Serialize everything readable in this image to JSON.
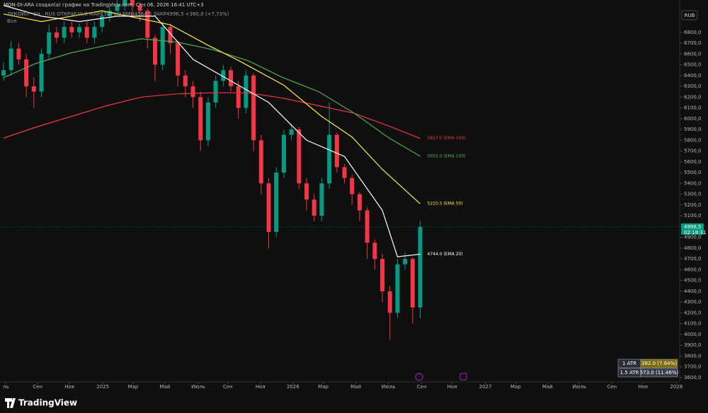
{
  "header": {
    "credit": "MON-DI-ARA создал(а) график на TradingView.com, Сен 06, 2026 16:41 UTC+3",
    "symbol_line": "ЛУКОЙЛ · 1Н · RUS  ОТКР4620,0 МАКС5071,0 МИН4564,5 ЗАКР4996,5 +360,0 (+7,73%)",
    "volume_label": "Вол"
  },
  "chart_data": {
    "type": "candlestick",
    "currency": "RUB",
    "up_color": "#089981",
    "down_color": "#f23645",
    "open": [
      6400,
      6450,
      6650,
      6550,
      6300,
      6250,
      6600,
      6800,
      6750,
      6850,
      6800,
      6850,
      6750,
      6850,
      6950,
      7000,
      7050,
      7100,
      7050,
      7000,
      6750,
      6500,
      6850,
      6700,
      6400,
      6300,
      6200,
      5800,
      6150,
      6350,
      6450,
      6300,
      6100,
      6400,
      5800,
      5400,
      4950,
      5500,
      5850,
      5900,
      5400,
      5250,
      5100,
      5400,
      5850,
      5550,
      5450,
      5300,
      5150,
      4850,
      4700,
      4400,
      4200,
      4650,
      4700,
      4250
    ],
    "high": [
      6520,
      6720,
      6700,
      6600,
      6380,
      6650,
      6870,
      6850,
      6900,
      6900,
      6880,
      6900,
      6900,
      7000,
      7050,
      7100,
      7150,
      7120,
      7080,
      7020,
      6780,
      6900,
      6880,
      6720,
      6450,
      6350,
      6250,
      6200,
      6400,
      6500,
      6480,
      6350,
      6450,
      6420,
      5850,
      5450,
      5550,
      5900,
      5950,
      5920,
      5450,
      5300,
      5450,
      6150,
      5870,
      5580,
      5480,
      5320,
      5180,
      4880,
      4750,
      4450,
      4700,
      4760,
      4720,
      5050
    ],
    "low": [
      6350,
      6400,
      6500,
      6200,
      6100,
      6200,
      6550,
      6700,
      6700,
      6750,
      6750,
      6700,
      6700,
      6800,
      6900,
      6950,
      7000,
      6950,
      6900,
      6650,
      6350,
      6450,
      6600,
      6300,
      6200,
      6100,
      5700,
      5750,
      6100,
      6300,
      6250,
      6000,
      6050,
      5700,
      5300,
      4800,
      4900,
      5450,
      5800,
      5350,
      5150,
      5050,
      5050,
      5350,
      5500,
      5400,
      5200,
      5050,
      4700,
      4600,
      4300,
      3950,
      4150,
      4600,
      4100,
      4150
    ],
    "close": [
      6450,
      6650,
      6550,
      6300,
      6250,
      6600,
      6800,
      6750,
      6850,
      6800,
      6850,
      6750,
      6850,
      6950,
      7000,
      7050,
      7100,
      7050,
      7000,
      6750,
      6500,
      6850,
      6700,
      6400,
      6300,
      6200,
      5800,
      6150,
      6350,
      6450,
      6300,
      6100,
      6400,
      5800,
      5400,
      4950,
      5500,
      5850,
      5900,
      5400,
      5250,
      5100,
      5400,
      5850,
      5550,
      5450,
      5300,
      5150,
      4850,
      4700,
      4400,
      4200,
      4650,
      4700,
      4250,
      4996.5
    ],
    "series": [
      {
        "name": "EMA 200",
        "color": "#f23645",
        "end_label": "5817.0 (EMA 200)",
        "x": [
          0,
          4.2,
          8.9,
          13.6,
          18.2,
          22.9,
          27.6,
          32.2,
          36.9,
          41.6,
          46.3,
          50.9,
          55
        ],
        "values": [
          5820,
          5920,
          6020,
          6120,
          6200,
          6230,
          6240,
          6240,
          6190,
          6120,
          6050,
          5930,
          5817
        ]
      },
      {
        "name": "EMA 100",
        "color": "#4caf50",
        "end_label": "5652.0 (EMA 100)",
        "x": [
          0,
          4.2,
          8.9,
          13.6,
          18.2,
          22.9,
          27.6,
          32.2,
          36.9,
          41.6,
          46.3,
          50.9,
          55
        ],
        "values": [
          6380,
          6510,
          6610,
          6680,
          6740,
          6710,
          6640,
          6540,
          6380,
          6250,
          6050,
          5820,
          5652
        ]
      },
      {
        "name": "EMA 50",
        "color": "#ffeb3b",
        "end_label": "5210.5 (EMA 50)",
        "x": [
          0,
          5,
          13,
          22,
          27,
          31,
          37,
          42,
          46,
          50,
          55
        ],
        "values": [
          6970,
          6900,
          7000,
          6870,
          6680,
          6540,
          6310,
          6020,
          5830,
          5530,
          5210.5
        ]
      },
      {
        "name": "EMA 20",
        "color": "#ffffff",
        "end_label": "4744.0 (EMA 20)",
        "x": [
          0,
          5,
          10,
          15,
          20,
          25,
          30,
          35,
          40,
          45,
          50,
          52,
          55
        ],
        "values": [
          7050,
          6950,
          6900,
          6950,
          6950,
          6550,
          6350,
          6150,
          5800,
          5650,
          5150,
          4720,
          4744
        ]
      }
    ],
    "last_price": {
      "value": 4996.5,
      "label": "4996,5"
    },
    "countdown": "02:18:31",
    "ylim": [
      3560,
      7100
    ],
    "yticks": [
      {
        "value": 3600,
        "label": "3600,0"
      },
      {
        "value": 3700,
        "label": "3700,0"
      },
      {
        "value": 3800,
        "label": "3800,0"
      },
      {
        "value": 3900,
        "label": "3900,0"
      },
      {
        "value": 4000,
        "label": "4000,0"
      },
      {
        "value": 4100,
        "label": "4100,0"
      },
      {
        "value": 4200,
        "label": "4200,0"
      },
      {
        "value": 4300,
        "label": "4300,0"
      },
      {
        "value": 4400,
        "label": "4400,0"
      },
      {
        "value": 4500,
        "label": "4500,0"
      },
      {
        "value": 4600,
        "label": "4600,0"
      },
      {
        "value": 4700,
        "label": "4700,0"
      },
      {
        "value": 4800,
        "label": "4800,0"
      },
      {
        "value": 4900,
        "label": "4900,0"
      },
      {
        "value": 5000,
        "label": "5000,0"
      },
      {
        "value": 5100,
        "label": "5100,0"
      },
      {
        "value": 5200,
        "label": "5200,0"
      },
      {
        "value": 5300,
        "label": "5300,0"
      },
      {
        "value": 5400,
        "label": "5400,0"
      },
      {
        "value": 5500,
        "label": "5500,0"
      },
      {
        "value": 5600,
        "label": "5600,0"
      },
      {
        "value": 5700,
        "label": "5700,0"
      },
      {
        "value": 5800,
        "label": "5800,0"
      },
      {
        "value": 5900,
        "label": "5900,0"
      },
      {
        "value": 6000,
        "label": "6000,0"
      },
      {
        "value": 6100,
        "label": "6100,0"
      },
      {
        "value": 6200,
        "label": "6200,0"
      },
      {
        "value": 6300,
        "label": "6300,0"
      },
      {
        "value": 6400,
        "label": "6400,0"
      },
      {
        "value": 6500,
        "label": "6500,0"
      },
      {
        "value": 6600,
        "label": "6600,0"
      },
      {
        "value": 6700,
        "label": "6700,0"
      },
      {
        "value": 6800,
        "label": "6800,0"
      }
    ],
    "xlim": [
      -0.47,
      89.25
    ],
    "xticks": [
      {
        "value": 0.3,
        "label": "ль"
      },
      {
        "value": 4.5,
        "label": "Сен"
      },
      {
        "value": 8.7,
        "label": "Ноя"
      },
      {
        "value": 13.1,
        "label": "2025"
      },
      {
        "value": 17.1,
        "label": "Мар"
      },
      {
        "value": 21.3,
        "label": "Май"
      },
      {
        "value": 25.7,
        "label": "Июль"
      },
      {
        "value": 29.6,
        "label": "Сен"
      },
      {
        "value": 33.9,
        "label": "Ноя"
      },
      {
        "value": 38.2,
        "label": "2026"
      },
      {
        "value": 42.2,
        "label": "Мар"
      },
      {
        "value": 46.5,
        "label": "Май"
      },
      {
        "value": 50.8,
        "label": "Июль"
      },
      {
        "value": 55.2,
        "label": "Сен"
      },
      {
        "value": 59.2,
        "label": "Ноя"
      },
      {
        "value": 63.6,
        "label": "2027"
      },
      {
        "value": 67.6,
        "label": "Мар"
      },
      {
        "value": 71.8,
        "label": "Май"
      },
      {
        "value": 76,
        "label": "Июль"
      },
      {
        "value": 80.3,
        "label": "Сен"
      },
      {
        "value": 84.4,
        "label": "Ноя"
      },
      {
        "value": 88.8,
        "label": "2028"
      }
    ],
    "atr_table": [
      {
        "name": "1 ATR",
        "value": "382.0 (7.64%)"
      },
      {
        "name": "1.5 ATR",
        "value": "573.0 (11.46%)"
      }
    ]
  },
  "footer": {
    "brand": "TradingView"
  }
}
